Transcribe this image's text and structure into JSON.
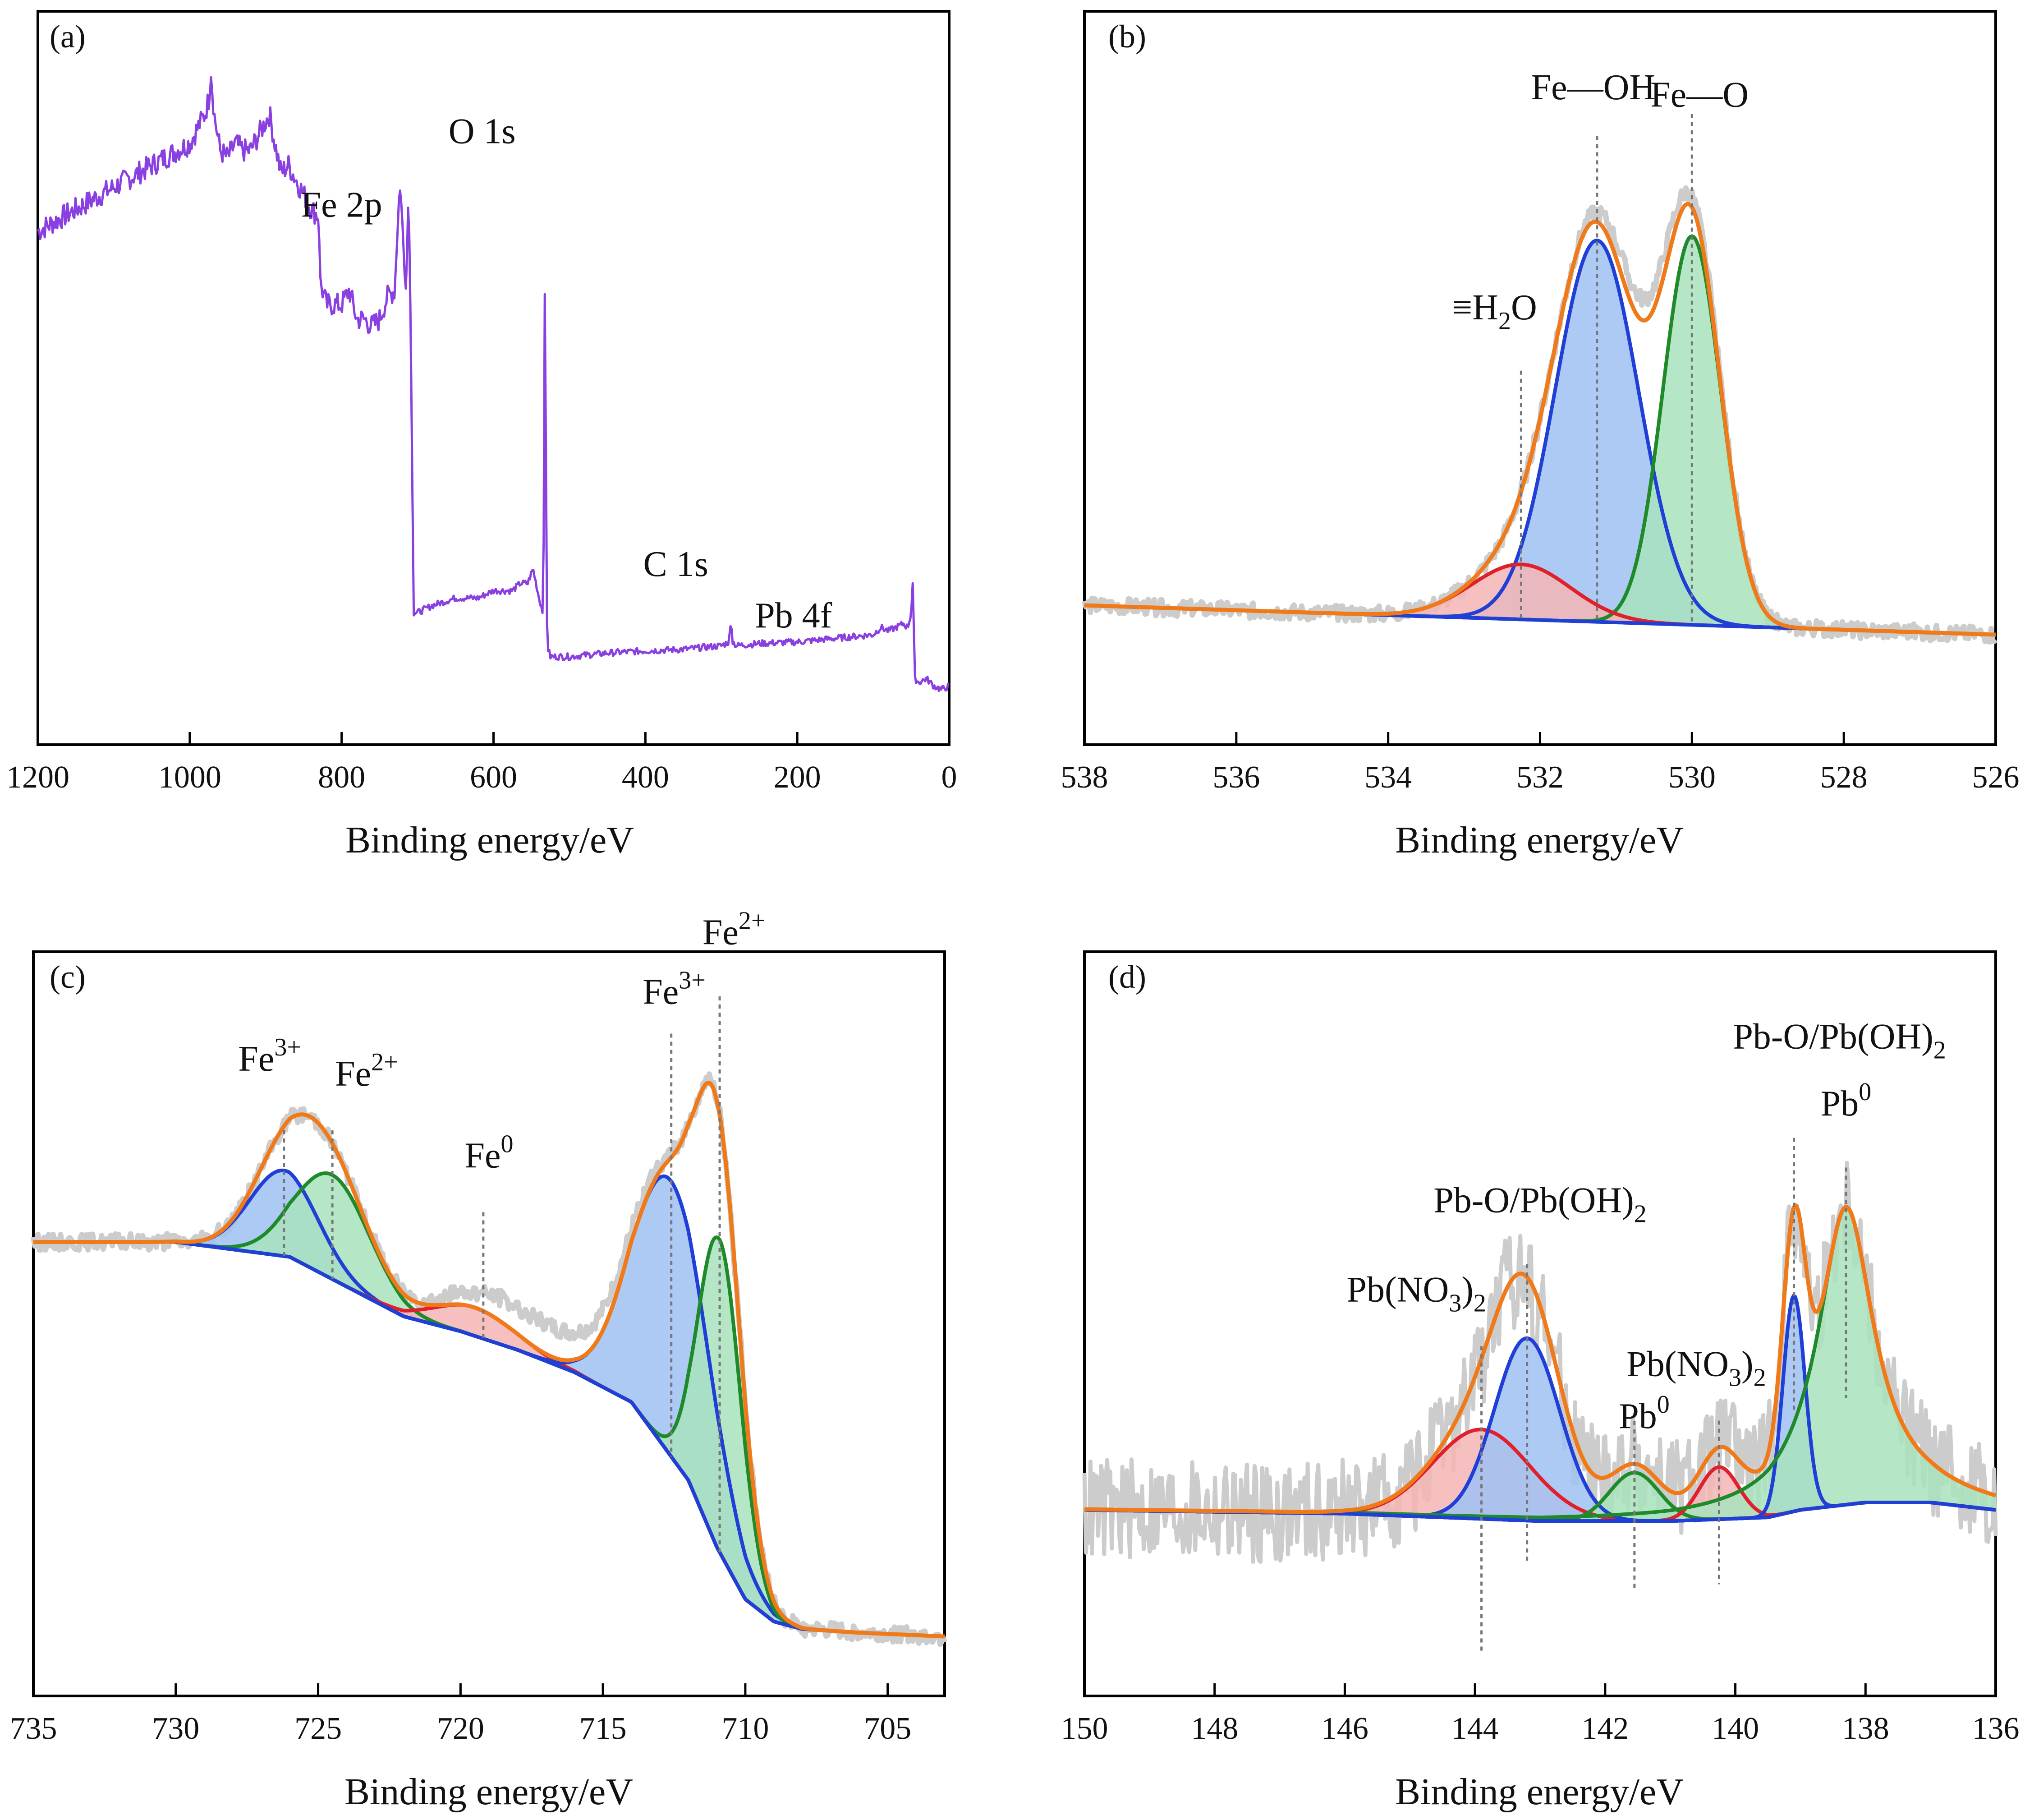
{
  "colors": {
    "survey": "#8a3fe0",
    "envelope": "#f07a1a",
    "blue": "#1f3fd6",
    "green": "#1f8a2a",
    "red": "#e0202a",
    "raw": "#cccccc",
    "fill_blue": "#9fc1f3",
    "fill_green": "#a8e3bd",
    "fill_red": "#f5b5b5",
    "guide": "#777777"
  },
  "chart_data": [
    {
      "id": "a",
      "panel_label": "(a)",
      "type": "line",
      "xlabel": "Binding energy/eV",
      "xlim": [
        1200,
        0
      ],
      "ylim": [
        0,
        100
      ],
      "xticks": [
        1200,
        1000,
        800,
        600,
        400,
        200,
        0
      ],
      "xtick_labels": [
        "1200",
        "1000",
        "800",
        "600",
        "400",
        "200",
        "0"
      ],
      "series": [
        {
          "name": "survey",
          "x": [
            1200,
            1150,
            1100,
            1050,
            1000,
            990,
            980,
            975,
            972,
            968,
            960,
            950,
            940,
            930,
            920,
            905,
            895,
            888,
            880,
            870,
            860,
            850,
            840,
            830,
            828,
            820,
            810,
            800,
            795,
            790,
            785,
            780,
            770,
            760,
            750,
            740,
            730,
            725,
            722,
            718,
            716,
            714,
            712,
            710,
            705,
            700,
            680,
            650,
            620,
            600,
            590,
            575,
            565,
            555,
            548,
            540,
            535,
            533,
            532,
            531,
            530,
            528,
            525,
            520,
            500,
            450,
            400,
            350,
            300,
            290,
            287,
            285,
            283,
            280,
            250,
            200,
            150,
            120,
            100,
            90,
            80,
            70,
            60,
            55,
            52,
            50,
            48,
            45,
            40,
            30,
            20,
            10,
            0
          ],
          "y": [
            70,
            73,
            76,
            79,
            82,
            84,
            86,
            88,
            92,
            86,
            81,
            80,
            82,
            81,
            81,
            84,
            86,
            82,
            78,
            79,
            77,
            75,
            73,
            72,
            63,
            60,
            60,
            60,
            61,
            62,
            60,
            58,
            58,
            57,
            58,
            61,
            62,
            74,
            76,
            66,
            62,
            68,
            75,
            65,
            18,
            18,
            19,
            20,
            20,
            21,
            21,
            21,
            22,
            22,
            24,
            20,
            18,
            38,
            84,
            40,
            18,
            13,
            12,
            12,
            12,
            12.5,
            12.8,
            13,
            13.5,
            14,
            17,
            14,
            13.8,
            13.5,
            13.8,
            14,
            14.5,
            14.8,
            15,
            16,
            15.5,
            16,
            16.5,
            16,
            17,
            18,
            22,
            9,
            8.5,
            9,
            8,
            7.5,
            8
          ]
        }
      ],
      "annotations": [
        {
          "text": "Fe 2p",
          "x": 800,
          "y": 72
        },
        {
          "text": "O 1s",
          "x": 615,
          "y": 82
        },
        {
          "text": "C 1s",
          "x": 360,
          "y": 23
        },
        {
          "text": "Pb 4f",
          "x": 205,
          "y": 16
        }
      ]
    },
    {
      "id": "b",
      "panel_label": "(b)",
      "type": "line",
      "xlabel": "Binding energy/eV",
      "xlim": [
        538,
        526
      ],
      "ylim": [
        0,
        100
      ],
      "xticks": [
        538,
        536,
        534,
        532,
        530,
        528,
        526
      ],
      "xtick_labels": [
        "538",
        "536",
        "534",
        "532",
        "530",
        "528",
        "526"
      ],
      "baseline": {
        "x": [
          538,
          526
        ],
        "y": [
          19,
          15
        ]
      },
      "components": [
        {
          "name": "Fe—OH",
          "color_key": "blue",
          "fill_key": "fill_blue",
          "center": 531.25,
          "amplitude": 52,
          "width": 0.55,
          "shape": "gaussian"
        },
        {
          "name": "Fe—O",
          "color_key": "green",
          "fill_key": "fill_green",
          "center": 530.0,
          "amplitude": 53,
          "width": 0.38,
          "shape": "gaussian"
        },
        {
          "name": "H2O",
          "color_key": "red",
          "fill_key": "fill_red",
          "center": 532.25,
          "amplitude": 7.5,
          "width": 0.65,
          "shape": "gaussian"
        }
      ],
      "envelope": {
        "name": "sum",
        "color_key": "envelope"
      },
      "guides": [
        {
          "x": 531.25,
          "y_top": 83
        },
        {
          "x": 530.0,
          "y_top": 86
        },
        {
          "x": 532.25,
          "y_top": 51
        }
      ],
      "annotations": [
        {
          "text_main": "Fe—OH",
          "x": 531.3,
          "y": 88
        },
        {
          "text_main": "Fe—O",
          "x": 529.9,
          "y": 87
        },
        {
          "text_main": "≡H",
          "sub": "2",
          "text_after": "O",
          "x": 532.6,
          "y": 58
        }
      ]
    },
    {
      "id": "c",
      "panel_label": "(c)",
      "type": "line",
      "xlabel": "Binding energy/eV",
      "xlim": [
        735,
        703
      ],
      "ylim": [
        0,
        100
      ],
      "xticks": [
        735,
        730,
        725,
        720,
        715,
        710,
        705
      ],
      "xtick_labels": [
        "735",
        "730",
        "725",
        "720",
        "715",
        "710",
        "705"
      ],
      "baseline": {
        "x": [
          735,
          730,
          726,
          724,
          722,
          720,
          718,
          716,
          714,
          712,
          711,
          710,
          709,
          708,
          706,
          703
        ],
        "y": [
          61,
          61,
          59,
          55,
          51,
          49,
          46.5,
          43.5,
          39.5,
          29,
          20,
          13,
          10,
          9,
          8.5,
          8
        ]
      },
      "components": [
        {
          "name": "Fe3+ 2p1/2",
          "color_key": "blue",
          "fill_key": "fill_blue",
          "center": 726.2,
          "amplitude": 11.5,
          "width": 1.2,
          "shape": "gaussian"
        },
        {
          "name": "Fe2+ 2p1/2",
          "color_key": "green",
          "fill_key": "fill_green",
          "center": 724.5,
          "amplitude": 14,
          "width": 1.3,
          "shape": "gaussian"
        },
        {
          "name": "Fe0",
          "color_key": "red",
          "fill_key": "fill_red",
          "center": 719.5,
          "amplitude": 3.8,
          "width": 1.4,
          "shape": "gaussian"
        },
        {
          "name": "Fe3+ 2p3/2",
          "color_key": "blue",
          "fill_key": "fill_blue",
          "center": 712.6,
          "amplitude": 37,
          "width": 1.35,
          "shape": "gaussian"
        },
        {
          "name": "Fe2+ 2p3/2",
          "color_key": "green",
          "fill_key": "fill_green",
          "center": 710.9,
          "amplitude": 42,
          "width": 0.75,
          "shape": "gaussian"
        }
      ],
      "envelope": {
        "name": "sum",
        "color_key": "envelope"
      },
      "guides": [
        {
          "x": 726.2,
          "y_top": 76
        },
        {
          "x": 724.5,
          "y_top": 76
        },
        {
          "x": 719.2,
          "y_top": 65
        },
        {
          "x": 712.6,
          "y_top": 89
        },
        {
          "x": 710.9,
          "y_top": 94
        }
      ],
      "annotations": [
        {
          "text_main": "Fe",
          "sup": "3+",
          "x": 726.7,
          "y": 84
        },
        {
          "text_main": "Fe",
          "sup": "2+",
          "x": 723.3,
          "y": 82
        },
        {
          "text_main": "Fe",
          "sup": "0",
          "x": 719.0,
          "y": 71
        },
        {
          "text_main": "Fe",
          "sup": "3+",
          "x": 712.5,
          "y": 93
        },
        {
          "text_main": "Fe",
          "sup": "2+",
          "x": 710.4,
          "y": 101
        }
      ]
    },
    {
      "id": "d",
      "panel_label": "(d)",
      "type": "line",
      "xlabel": "Binding energy/eV",
      "xlim": [
        150,
        136
      ],
      "ylim": [
        0,
        100
      ],
      "xticks": [
        150,
        148,
        146,
        144,
        142,
        140,
        138,
        136
      ],
      "xtick_labels": [
        "150",
        "148",
        "146",
        "144",
        "142",
        "140",
        "138",
        "136"
      ],
      "baseline": {
        "x": [
          150,
          146,
          143,
          141,
          139.5,
          139,
          138,
          137,
          136
        ],
        "y": [
          25,
          24.5,
          23.5,
          23.5,
          24,
          25,
          26,
          26,
          25
        ]
      },
      "components": [
        {
          "name": "Pb(NO3)2 4f5/2",
          "color_key": "red",
          "fill_key": "fill_red",
          "center": 143.9,
          "amplitude": 12,
          "width": 0.75,
          "shape": "gaussian"
        },
        {
          "name": "Pb-O/Pb(OH)2 4f5/2",
          "color_key": "blue",
          "fill_key": "fill_blue",
          "center": 143.2,
          "amplitude": 24.5,
          "width": 0.5,
          "shape": "gaussian"
        },
        {
          "name": "Pb0 4f5/2",
          "color_key": "green",
          "fill_key": "fill_green",
          "center": 141.55,
          "amplitude": 6.5,
          "width": 0.38,
          "shape": "gaussian"
        },
        {
          "name": "Pb(NO3)2 4f7/2",
          "color_key": "red",
          "fill_key": "fill_red",
          "center": 140.25,
          "amplitude": 7,
          "width": 0.3,
          "shape": "gaussian"
        },
        {
          "name": "Pb-O/Pb(OH)2 4f7/2",
          "color_key": "blue",
          "fill_key": "fill_blue",
          "center": 139.1,
          "amplitude": 29,
          "width": 0.17,
          "shape": "gaussian"
        },
        {
          "name": "Pb0 4f7/2",
          "color_key": "green",
          "fill_key": "fill_green",
          "center": 138.3,
          "amplitude": 40,
          "width": 0.52,
          "shape": "lorentzian"
        }
      ],
      "envelope": {
        "name": "sum",
        "color_key": "envelope"
      },
      "guides": [
        {
          "x": 143.9,
          "y_top": 47,
          "y_bottom": 6
        },
        {
          "x": 143.2,
          "y_top": 58,
          "y_bottom": 18
        },
        {
          "x": 141.55,
          "y_top": 38,
          "y_bottom": 14
        },
        {
          "x": 140.25,
          "y_top": 37,
          "y_bottom": 15
        },
        {
          "x": 139.1,
          "y_top": 75,
          "y_bottom": 38
        },
        {
          "x": 138.3,
          "y_top": 71,
          "y_bottom": 40
        }
      ],
      "annotations": [
        {
          "text_main": "Pb(NO",
          "sub": "3",
          "text_after": ")",
          "sub2": "2",
          "x": 144.9,
          "y": 53
        },
        {
          "text_main": "Pb-O/Pb(OH)",
          "sub": "2",
          "x": 143.0,
          "y": 65
        },
        {
          "text_main": "Pb(NO",
          "sub": "3",
          "text_after": ")",
          "sub2": "2",
          "x": 140.6,
          "y": 43
        },
        {
          "text_main": "Pb",
          "sup": "0",
          "x": 141.4,
          "y": 36
        },
        {
          "text_main": "Pb-O/Pb(OH)",
          "sub": "2",
          "x": 138.4,
          "y": 87
        },
        {
          "text_main": "Pb",
          "sup": "0",
          "x": 138.3,
          "y": 78
        }
      ]
    }
  ]
}
